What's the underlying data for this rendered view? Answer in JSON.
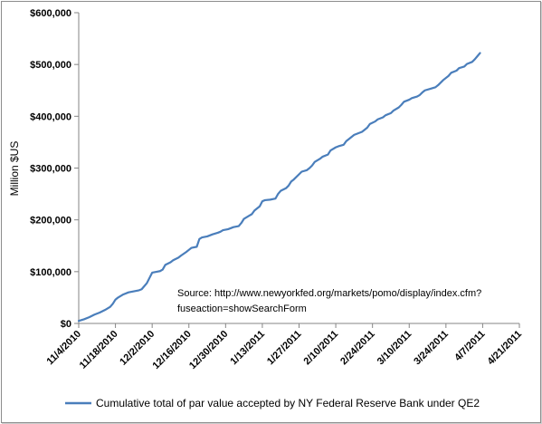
{
  "chart_data": {
    "type": "line",
    "title": "",
    "xlabel": "",
    "ylabel": "Million $US",
    "ylim": [
      0,
      600000
    ],
    "y_ticks": [
      0,
      100000,
      200000,
      300000,
      400000,
      500000,
      600000
    ],
    "y_tick_labels": [
      "$0",
      "$100,000",
      "$200,000",
      "$300,000",
      "$400,000",
      "$500,000",
      "$600,000"
    ],
    "x_tick_labels": [
      "11/4/2010",
      "11/18/2010",
      "12/2/2010",
      "12/16/2010",
      "12/30/2010",
      "1/13/2011",
      "1/27/2011",
      "2/10/2011",
      "2/24/2011",
      "3/10/2011",
      "3/24/2011",
      "4/7/2011",
      "4/21/2011"
    ],
    "xlim": [
      "2010-11-04",
      "2011-04-21"
    ],
    "grid": false,
    "legend_position": "bottom",
    "series": [
      {
        "name": "Cumulative total of par value accepted by NY Federal Reserve Bank under QE2",
        "color": "#4a7ebb",
        "x": [
          "2010-11-04",
          "2010-11-06",
          "2010-11-08",
          "2010-11-10",
          "2010-11-12",
          "2010-11-14",
          "2010-11-16",
          "2010-11-17",
          "2010-11-18",
          "2010-11-19",
          "2010-11-21",
          "2010-11-23",
          "2010-11-25",
          "2010-11-27",
          "2010-11-28",
          "2010-11-30",
          "2010-12-01",
          "2010-12-02",
          "2010-12-04",
          "2010-12-05",
          "2010-12-06",
          "2010-12-07",
          "2010-12-09",
          "2010-12-10",
          "2010-12-12",
          "2010-12-13",
          "2010-12-15",
          "2010-12-16",
          "2010-12-17",
          "2010-12-19",
          "2010-12-20",
          "2010-12-21",
          "2010-12-23",
          "2010-12-24",
          "2010-12-25",
          "2010-12-27",
          "2010-12-28",
          "2010-12-29",
          "2010-12-31",
          "2011-01-01",
          "2011-01-02",
          "2011-01-04",
          "2011-01-05",
          "2011-01-06",
          "2011-01-08",
          "2011-01-09",
          "2011-01-10",
          "2011-01-12",
          "2011-01-13",
          "2011-01-14",
          "2011-01-16",
          "2011-01-18",
          "2011-01-19",
          "2011-01-20",
          "2011-01-22",
          "2011-01-23",
          "2011-01-24",
          "2011-01-25",
          "2011-01-27",
          "2011-01-28",
          "2011-01-30",
          "2011-01-31",
          "2011-02-01",
          "2011-02-02",
          "2011-02-04",
          "2011-02-05",
          "2011-02-07",
          "2011-02-08",
          "2011-02-10",
          "2011-02-11",
          "2011-02-13",
          "2011-02-14",
          "2011-02-15",
          "2011-02-17",
          "2011-02-18",
          "2011-02-20",
          "2011-02-21",
          "2011-02-22",
          "2011-02-23",
          "2011-02-25",
          "2011-02-26",
          "2011-02-28",
          "2011-03-01",
          "2011-03-03",
          "2011-03-04",
          "2011-03-06",
          "2011-03-07",
          "2011-03-08",
          "2011-03-10",
          "2011-03-11",
          "2011-03-13",
          "2011-03-14",
          "2011-03-15",
          "2011-03-16",
          "2011-03-18",
          "2011-03-20",
          "2011-03-21",
          "2011-03-22",
          "2011-03-23",
          "2011-03-25",
          "2011-03-26",
          "2011-03-28",
          "2011-03-29",
          "2011-03-31",
          "2011-04-01",
          "2011-04-03",
          "2011-04-04",
          "2011-04-05",
          "2011-04-06"
        ],
        "values": [
          5000,
          8000,
          12000,
          17000,
          21000,
          26000,
          32000,
          38000,
          46000,
          50000,
          56000,
          60000,
          62000,
          64000,
          66000,
          78000,
          88000,
          98000,
          100000,
          101000,
          104000,
          113000,
          118000,
          122000,
          127000,
          131000,
          138000,
          142000,
          146000,
          148000,
          163000,
          166000,
          168000,
          170000,
          172000,
          175000,
          177000,
          180000,
          182000,
          184000,
          186000,
          188000,
          194000,
          202000,
          208000,
          211000,
          218000,
          226000,
          236000,
          238000,
          239000,
          241000,
          250000,
          256000,
          261000,
          266000,
          274000,
          278000,
          288000,
          293000,
          296000,
          300000,
          305000,
          312000,
          318000,
          322000,
          326000,
          334000,
          340000,
          342000,
          345000,
          352000,
          356000,
          364000,
          366000,
          370000,
          374000,
          378000,
          385000,
          390000,
          394000,
          398000,
          402000,
          406000,
          411000,
          417000,
          422000,
          428000,
          432000,
          435000,
          438000,
          441000,
          446000,
          450000,
          453000,
          456000,
          460000,
          465000,
          470000,
          478000,
          484000,
          488000,
          493000,
          496000,
          501000,
          505000,
          510000,
          516000,
          522000
        ]
      }
    ],
    "annotation": {
      "line1": "Source: http://www.newyorkfed.org/markets/pomo/display/index.cfm?",
      "line2": "fuseaction=showSearchForm"
    }
  }
}
